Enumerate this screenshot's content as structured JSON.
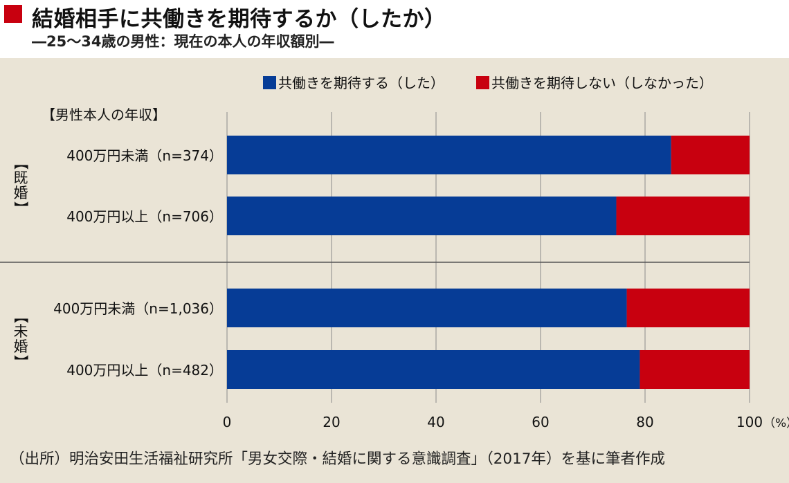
{
  "header": {
    "title": "結婚相手に共働きを期待するか（したか）",
    "subtitle": "―25～34歳の男性：現在の本人の年収額別―",
    "accent_color": "#c8000f"
  },
  "chart_data": {
    "type": "bar",
    "orientation": "horizontal",
    "stacked": true,
    "legend_position": "top-right",
    "grid": true,
    "row_axis_label": "【男性本人の年収】",
    "groups": [
      {
        "label": "【既婚】",
        "rows": [
          "400万円未満（n=374）",
          "400万円以上（n=706）"
        ]
      },
      {
        "label": "【未婚】",
        "rows": [
          "400万円未満（n=1,036）",
          "400万円以上（n=482）"
        ]
      }
    ],
    "categories": [
      "400万円未満（n=374）",
      "400万円以上（n=706）",
      "400万円未満（n=1,036）",
      "400万円以上（n=482）"
    ],
    "series": [
      {
        "name": "共働きを期待する（した）",
        "color": "#063c96",
        "values": [
          85,
          74.5,
          76.5,
          79
        ]
      },
      {
        "name": "共働きを期待しない（しなかった）",
        "color": "#c8000f",
        "values": [
          15,
          25.5,
          23.5,
          21
        ]
      }
    ],
    "xlim": [
      0,
      100
    ],
    "xticks": [
      "0",
      "20",
      "40",
      "60",
      "80",
      "100"
    ],
    "x_unit": "（%）"
  },
  "footer": {
    "source": "（出所）明治安田生活福祉研究所「男女交際・結婚に関する意識調査」（2017年）を基に筆者作成"
  }
}
